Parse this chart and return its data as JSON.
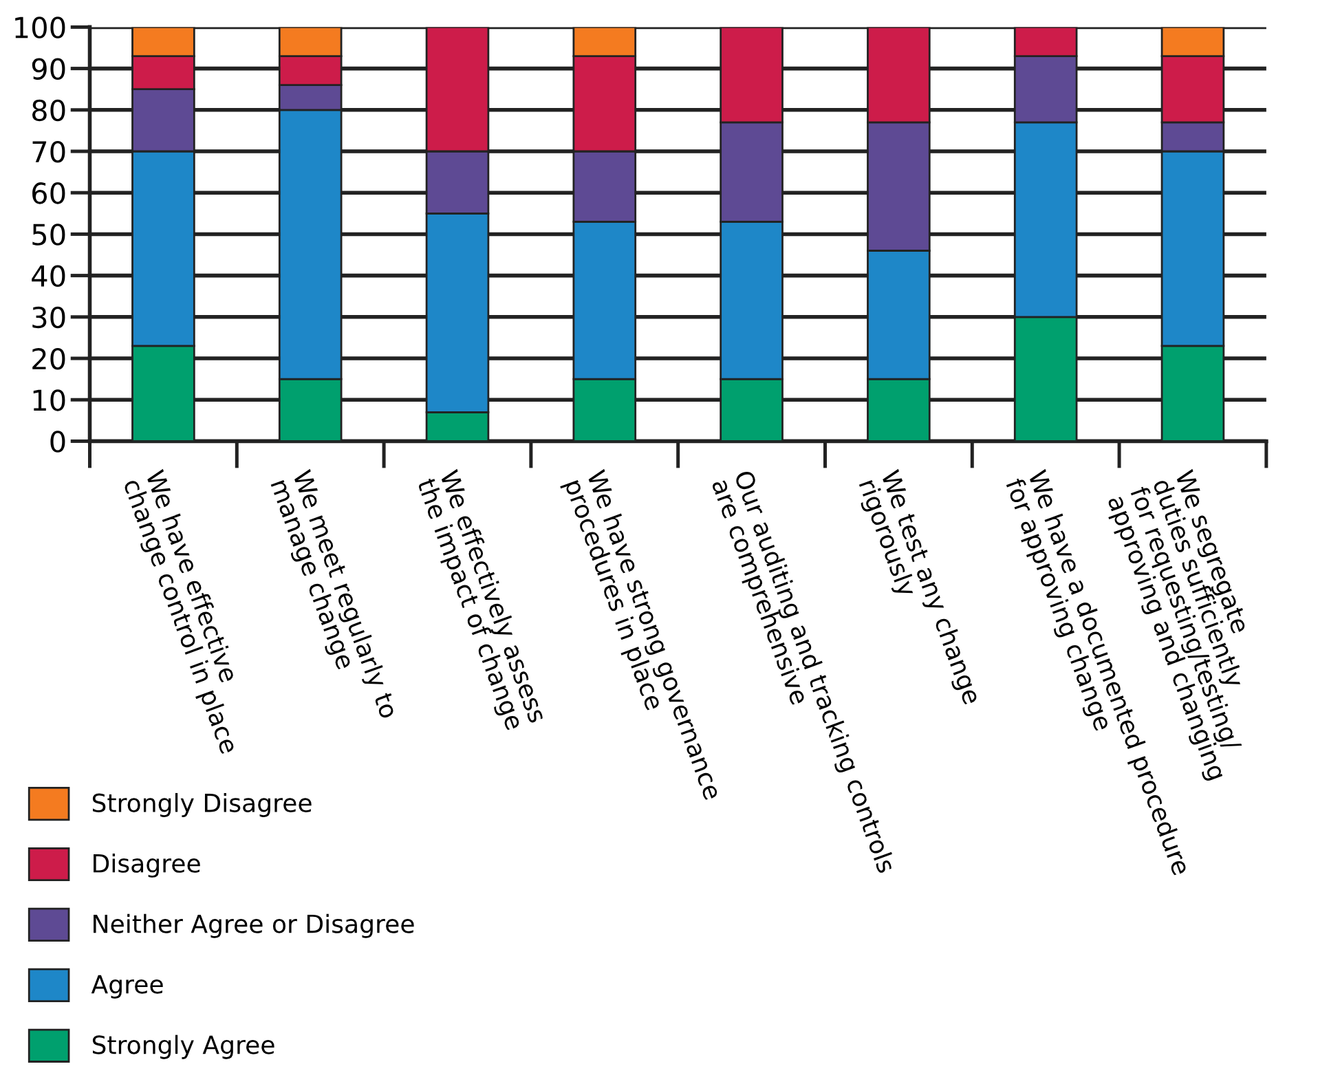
{
  "chart_data": {
    "type": "bar",
    "stacked": true,
    "categories": [
      "We have effective\nchange control in place",
      "We meet regularly to\nmanage change",
      "We effectively assess\nthe impact of change",
      "We have strong governance\nprocedures in place",
      "Our auditing and tracking controls\nare comprehensive",
      "We test any change\nrigorously",
      "We have a documented procedure\nfor approving change",
      "We segregate\nduties sufficiently\nfor requesting/testing/\napproving and changing"
    ],
    "series": [
      {
        "name": "Strongly Agree",
        "color": "#00a06e",
        "values": [
          23,
          15,
          7,
          15,
          15,
          15,
          30,
          23
        ]
      },
      {
        "name": "Agree",
        "color": "#1e87c8",
        "values": [
          47,
          65,
          48,
          38,
          38,
          31,
          47,
          47
        ]
      },
      {
        "name": "Neither Agree or Disagree",
        "color": "#5e4a94",
        "values": [
          15,
          6,
          15,
          17,
          24,
          31,
          16,
          7
        ]
      },
      {
        "name": "Disagree",
        "color": "#cd1c4a",
        "values": [
          8,
          7,
          30,
          23,
          23,
          23,
          7,
          16
        ]
      },
      {
        "name": "Strongly Disagree",
        "color": "#f47b20",
        "values": [
          7,
          7,
          null,
          7,
          null,
          null,
          null,
          7
        ]
      }
    ],
    "ylim": [
      0,
      100
    ],
    "yticks": [
      0,
      10,
      20,
      30,
      40,
      50,
      60,
      70,
      80,
      90,
      100
    ],
    "grid": "y",
    "legend": "bottom left"
  }
}
